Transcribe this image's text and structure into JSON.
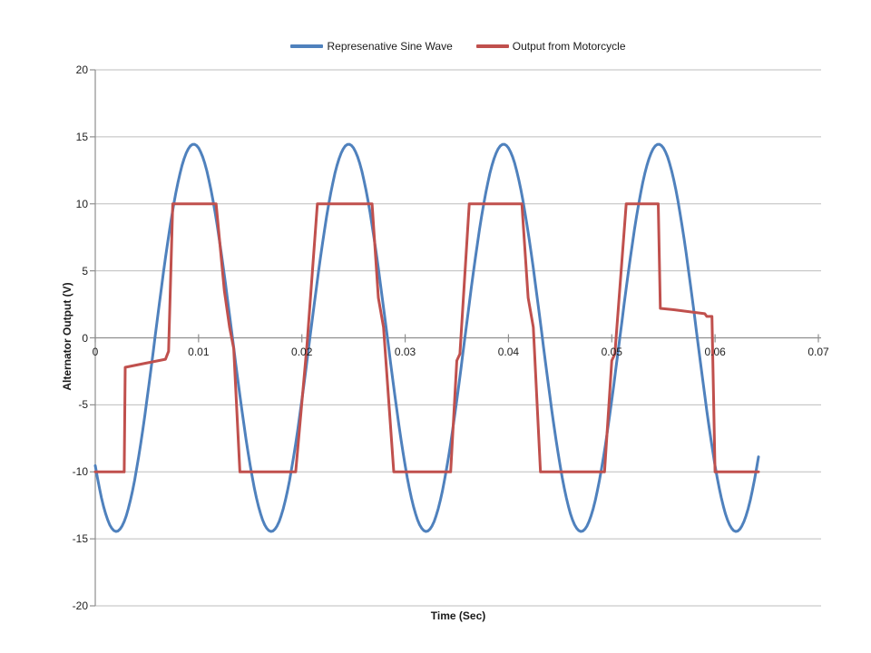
{
  "page": {
    "background_color": "#ffffff",
    "text_color": "#212121"
  },
  "chart_data": {
    "type": "line",
    "title": "",
    "xlabel": "Time (Sec)",
    "ylabel": "Alternator Output (V)",
    "xlim": [
      0,
      0.07
    ],
    "ylim": [
      -20,
      20
    ],
    "x_tick_values": [
      0,
      0.01,
      0.02,
      0.03,
      0.04,
      0.05,
      0.06,
      0.07
    ],
    "x_tick_labels": [
      "0",
      "0.01",
      "0.02",
      "0.03",
      "0.04",
      "0.05",
      "0.06",
      "0.07"
    ],
    "y_tick_values": [
      20,
      15,
      10,
      5,
      0,
      -5,
      -10,
      -15,
      -20
    ],
    "y_tick_labels": [
      "20",
      "15",
      "10",
      "5",
      "0",
      "-5",
      "-10",
      "-15",
      "-20"
    ],
    "grid": "horizontal",
    "grid_color": "#bdbdbd",
    "axis_color": "#8e8e8e",
    "legend_position": "top-center",
    "series": [
      {
        "name": "Represenative Sine Wave",
        "color": "#4F81BD",
        "model": "sine",
        "amplitude": 14.45,
        "period": 0.015,
        "zero_crossing_rising": 0.00578,
        "t_start": 0,
        "t_end": 0.0643,
        "sample_step": 0.0002
      },
      {
        "name": "Output from Motorcycle",
        "color": "#C0504D",
        "points": [
          [
            0.0,
            -10
          ],
          [
            0.0028,
            -10
          ],
          [
            0.0029,
            -2.2
          ],
          [
            0.0048,
            -1.9
          ],
          [
            0.0068,
            -1.6
          ],
          [
            0.0071,
            -1.0
          ],
          [
            0.0075,
            10
          ],
          [
            0.0117,
            10
          ],
          [
            0.0125,
            3.5
          ],
          [
            0.013,
            0.8
          ],
          [
            0.0134,
            -0.8
          ],
          [
            0.014,
            -10
          ],
          [
            0.0194,
            -10
          ],
          [
            0.0205,
            -0.5
          ],
          [
            0.0215,
            10
          ],
          [
            0.0268,
            10
          ],
          [
            0.0274,
            3.0
          ],
          [
            0.0279,
            0.8
          ],
          [
            0.0289,
            -10
          ],
          [
            0.0344,
            -10
          ],
          [
            0.035,
            -1.7
          ],
          [
            0.0353,
            -1.2
          ],
          [
            0.0362,
            10
          ],
          [
            0.0413,
            10
          ],
          [
            0.0419,
            3.0
          ],
          [
            0.0424,
            0.8
          ],
          [
            0.0431,
            -10
          ],
          [
            0.0493,
            -10
          ],
          [
            0.05,
            -1.7
          ],
          [
            0.0503,
            -1.2
          ],
          [
            0.0514,
            10
          ],
          [
            0.0545,
            10
          ],
          [
            0.0547,
            2.2
          ],
          [
            0.056,
            2.1
          ],
          [
            0.059,
            1.8
          ],
          [
            0.0592,
            1.6
          ],
          [
            0.0597,
            1.6
          ],
          [
            0.06,
            -10
          ],
          [
            0.0642,
            -10
          ]
        ]
      }
    ]
  }
}
